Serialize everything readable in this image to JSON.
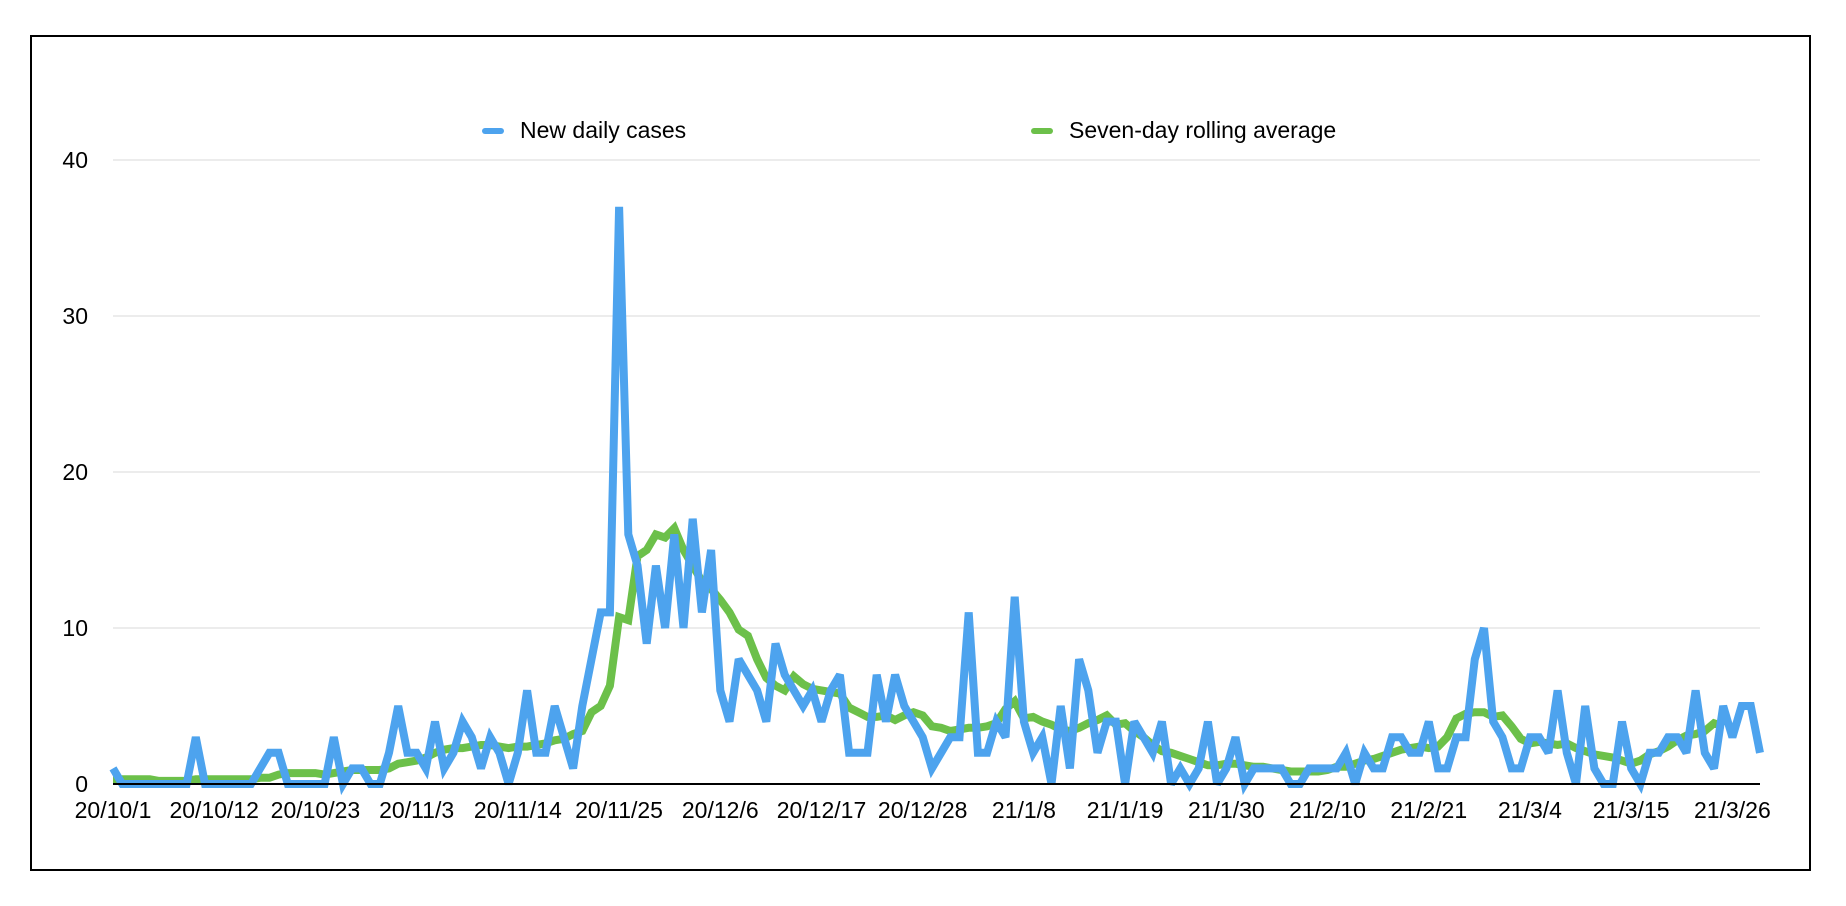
{
  "chart_data": {
    "type": "line",
    "title": "",
    "xlabel": "",
    "ylabel": "",
    "ylim": [
      0,
      40
    ],
    "yticks": [
      0,
      10,
      20,
      30,
      40
    ],
    "grid": true,
    "legend_position": "top",
    "x_tick_labels": [
      "20/10/1",
      "20/10/12",
      "20/10/23",
      "20/11/3",
      "20/11/14",
      "20/11/25",
      "20/12/6",
      "20/12/17",
      "20/12/28",
      "21/1/8",
      "21/1/19",
      "21/1/30",
      "21/2/10",
      "21/2/21",
      "21/3/4",
      "21/3/15",
      "21/3/26"
    ],
    "x_start": "20/10/1",
    "x_end": "21/3/26",
    "series": [
      {
        "name": "New daily cases",
        "color": "#4DA3EE",
        "values": [
          1,
          0,
          0,
          0,
          0,
          0,
          0,
          0,
          0,
          3,
          0,
          0,
          0,
          0,
          0,
          0,
          1,
          2,
          2,
          0,
          0,
          0,
          0,
          0,
          3,
          0,
          1,
          1,
          0,
          0,
          2,
          5,
          2,
          2,
          1,
          4,
          1,
          2,
          4,
          3,
          1,
          3,
          2,
          0,
          2,
          6,
          2,
          2,
          5,
          3,
          1,
          5,
          8,
          11,
          11,
          37,
          16,
          14,
          9,
          14,
          10,
          16,
          10,
          17,
          11,
          15,
          6,
          4,
          8,
          7,
          6,
          4,
          9,
          7,
          6,
          5,
          6,
          4,
          6,
          7,
          2,
          2,
          2,
          7,
          4,
          7,
          5,
          4,
          3,
          1,
          2,
          3,
          3,
          11,
          2,
          2,
          4,
          3,
          12,
          4,
          2,
          3,
          0,
          5,
          1,
          8,
          6,
          2,
          4,
          4,
          0,
          4,
          3,
          2,
          4,
          0,
          1,
          0,
          1,
          4,
          0,
          1,
          3,
          0,
          1,
          1,
          1,
          1,
          0,
          0,
          1,
          1,
          1,
          1,
          2,
          0,
          2,
          1,
          1,
          3,
          3,
          2,
          2,
          4,
          1,
          1,
          3,
          3,
          8,
          10,
          4,
          3,
          1,
          1,
          3,
          3,
          2,
          6,
          2,
          0,
          5,
          1,
          0,
          0,
          4,
          1,
          0,
          2,
          2,
          3,
          3,
          2,
          6,
          2,
          1,
          5,
          3,
          5,
          5,
          2
        ]
      },
      {
        "name": "Seven-day rolling average",
        "color": "#6CC04A",
        "values": [
          0.3,
          0.3,
          0.3,
          0.3,
          0.3,
          0.2,
          0.2,
          0.2,
          0.2,
          0.3,
          0.3,
          0.3,
          0.3,
          0.3,
          0.3,
          0.3,
          0.4,
          0.4,
          0.6,
          0.7,
          0.7,
          0.7,
          0.7,
          0.6,
          0.7,
          0.8,
          0.9,
          0.9,
          0.9,
          0.9,
          1.0,
          1.3,
          1.4,
          1.5,
          1.7,
          2.0,
          2.2,
          2.3,
          2.3,
          2.4,
          2.5,
          2.5,
          2.4,
          2.3,
          2.4,
          2.4,
          2.5,
          2.6,
          2.8,
          2.9,
          3.2,
          3.4,
          4.6,
          5.0,
          6.3,
          10.7,
          10.5,
          14.6,
          15.0,
          16.0,
          15.8,
          16.4,
          15.0,
          14.0,
          13.0,
          12.5,
          11.8,
          11.0,
          9.9,
          9.5,
          8.0,
          6.8,
          6.3,
          6.0,
          6.9,
          6.4,
          6.1,
          6.0,
          5.9,
          5.8,
          4.9,
          4.6,
          4.3,
          4.3,
          4.4,
          4.1,
          4.4,
          4.6,
          4.4,
          3.7,
          3.6,
          3.4,
          3.5,
          3.6,
          3.6,
          3.7,
          3.9,
          4.8,
          5.3,
          4.2,
          4.3,
          4.0,
          3.8,
          3.5,
          3.4,
          3.6,
          3.9,
          4.1,
          4.4,
          3.8,
          3.9,
          3.4,
          3.0,
          2.5,
          2.1,
          2.0,
          1.8,
          1.6,
          1.4,
          1.2,
          1.2,
          1.3,
          1.3,
          1.2,
          1.1,
          1.1,
          1.0,
          0.9,
          0.8,
          0.8,
          0.8,
          0.8,
          0.9,
          1.1,
          1.1,
          1.3,
          1.5,
          1.6,
          1.8,
          2.0,
          2.2,
          2.3,
          2.4,
          2.3,
          2.4,
          3.0,
          4.2,
          4.5,
          4.6,
          4.6,
          4.3,
          4.4,
          3.7,
          2.9,
          2.6,
          2.7,
          2.6,
          2.5,
          2.6,
          2.3,
          2.1,
          1.9,
          1.8,
          1.7,
          1.5,
          1.3,
          1.5,
          1.9,
          2.1,
          2.4,
          2.8,
          3.1,
          3.2,
          3.4,
          3.9,
          3.7
        ]
      }
    ]
  }
}
